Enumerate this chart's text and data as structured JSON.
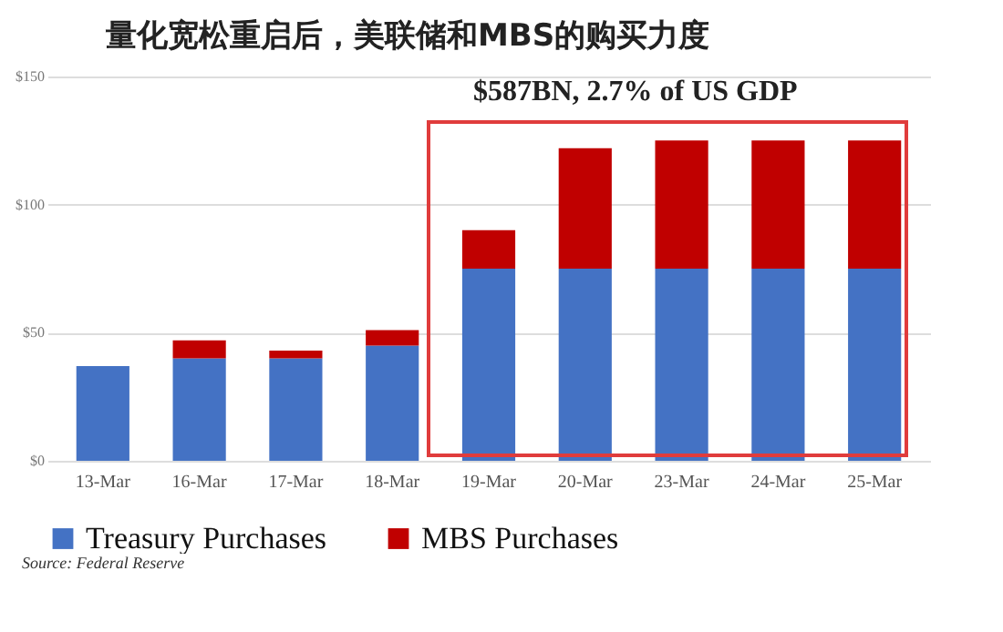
{
  "chart_data": {
    "type": "bar",
    "title": "量化宽松重启后，美联储和MBS的购买力度",
    "categories": [
      "13-Mar",
      "16-Mar",
      "17-Mar",
      "18-Mar",
      "19-Mar",
      "20-Mar",
      "23-Mar",
      "24-Mar",
      "25-Mar"
    ],
    "series": [
      {
        "name": "Treasury Purchases",
        "color": "#4472c4",
        "values": [
          37,
          40,
          40,
          45,
          75,
          75,
          75,
          75,
          75
        ]
      },
      {
        "name": "MBS Purchases",
        "color": "#c00000",
        "values": [
          0,
          7,
          3,
          6,
          15,
          47,
          50,
          50,
          50
        ]
      }
    ],
    "stacked": true,
    "ylim": [
      0,
      150
    ],
    "yticks": [
      {
        "value": 0,
        "label": "$0"
      },
      {
        "value": 50,
        "label": "$50"
      },
      {
        "value": 100,
        "label": "$100"
      },
      {
        "value": 150,
        "label": "$150"
      }
    ],
    "grid": "y",
    "legend": "bottom",
    "annotations": [
      "$587BN, 2.7% of US GDP",
      "Source: Federal Reserve"
    ]
  }
}
